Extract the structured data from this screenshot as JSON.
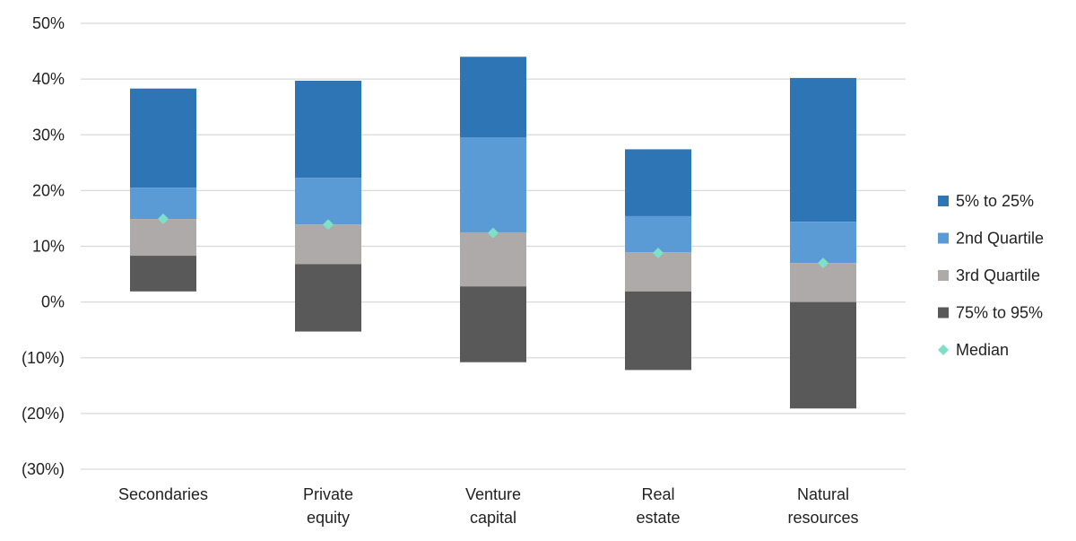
{
  "chart_data": {
    "type": "bar",
    "stacked": "floating-range",
    "categories": [
      [
        "Secondaries"
      ],
      [
        "Private",
        "equity"
      ],
      [
        "Venture",
        "capital"
      ],
      [
        "Real",
        "estate"
      ],
      [
        "Natural",
        "resources"
      ]
    ],
    "yticks": [
      "50%",
      "40%",
      "30%",
      "20%",
      "10%",
      "0%",
      "(10%)",
      "(20%)",
      "(30%)"
    ],
    "ylim": [
      -30,
      50
    ],
    "grid": true,
    "legend_position": "right",
    "series": [
      {
        "name": "5% to 25%",
        "color": "#2e75b6",
        "low": [
          20.5,
          22.3,
          29.5,
          15.4,
          14.4
        ],
        "high": [
          38.3,
          39.7,
          44.0,
          27.4,
          40.2
        ]
      },
      {
        "name": "2nd Quartile",
        "color": "#5b9bd5",
        "low": [
          14.9,
          13.9,
          12.5,
          8.9,
          7.0
        ],
        "high": [
          20.5,
          22.3,
          29.5,
          15.4,
          14.4
        ]
      },
      {
        "name": "3rd Quartile",
        "color": "#aeaaaa",
        "low": [
          8.3,
          6.8,
          2.8,
          1.9,
          0.0
        ],
        "high": [
          14.9,
          13.9,
          12.5,
          8.9,
          7.0
        ]
      },
      {
        "name": "75% to 95%",
        "color": "#595959",
        "low": [
          1.9,
          -5.3,
          -10.8,
          -12.2,
          -19.1
        ],
        "high": [
          8.3,
          6.8,
          2.8,
          1.9,
          0.0
        ]
      }
    ],
    "median": {
      "name": "Median",
      "color": "#7ee0c6",
      "values": [
        14.9,
        13.9,
        12.4,
        8.8,
        7.0
      ]
    }
  }
}
